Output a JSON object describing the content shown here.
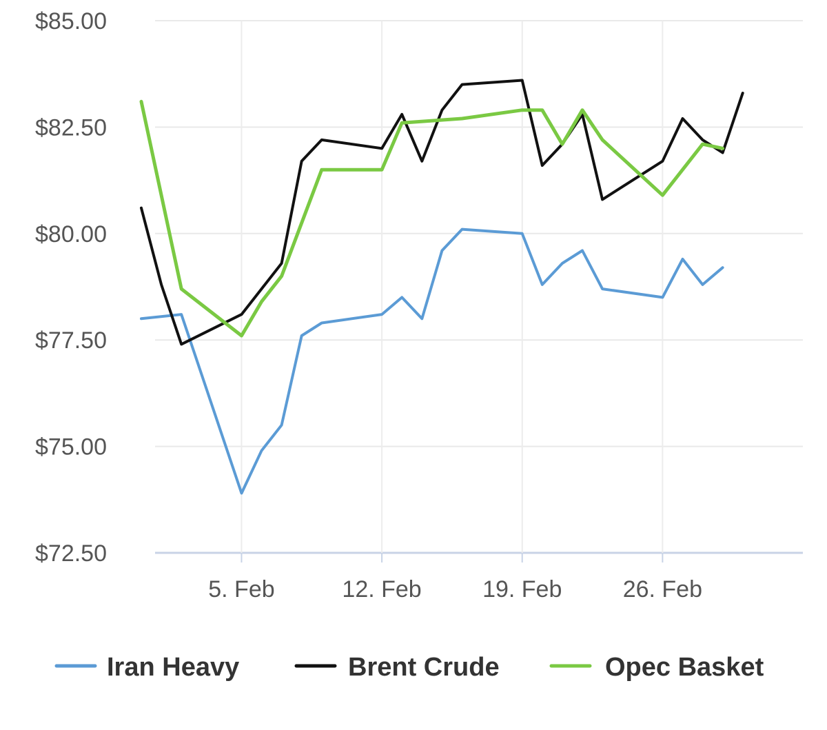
{
  "chart_data": {
    "type": "line",
    "title": "",
    "xlabel": "",
    "ylabel": "",
    "ylim": [
      72.5,
      85.0
    ],
    "xlim": [
      "2018-01-31",
      "2018-03-05"
    ],
    "y_ticks": [
      85.0,
      82.5,
      80.0,
      77.5,
      75.0,
      72.5
    ],
    "y_tick_labels": [
      "$85.00",
      "$82.50",
      "$80.00",
      "$77.50",
      "$75.00",
      "$72.50"
    ],
    "x_ticks": [
      "2018-02-05",
      "2018-02-12",
      "2018-02-19",
      "2018-02-26"
    ],
    "x_tick_labels": [
      "5. Feb",
      "12. Feb",
      "19. Feb",
      "26. Feb"
    ],
    "grid": true,
    "legend_position": "bottom",
    "series": [
      {
        "name": "Iran Heavy",
        "color": "#5b9bd5",
        "points": [
          [
            "2018-01-31",
            78.0
          ],
          [
            "2018-02-02",
            78.1
          ],
          [
            "2018-02-05",
            73.9
          ],
          [
            "2018-02-06",
            74.9
          ],
          [
            "2018-02-07",
            75.5
          ],
          [
            "2018-02-08",
            77.6
          ],
          [
            "2018-02-09",
            77.9
          ],
          [
            "2018-02-12",
            78.1
          ],
          [
            "2018-02-13",
            78.5
          ],
          [
            "2018-02-14",
            78.0
          ],
          [
            "2018-02-15",
            79.6
          ],
          [
            "2018-02-16",
            80.1
          ],
          [
            "2018-02-19",
            80.0
          ],
          [
            "2018-02-20",
            78.8
          ],
          [
            "2018-02-21",
            79.3
          ],
          [
            "2018-02-22",
            79.6
          ],
          [
            "2018-02-23",
            78.7
          ],
          [
            "2018-02-26",
            78.5
          ],
          [
            "2018-02-27",
            79.4
          ],
          [
            "2018-02-28",
            78.8
          ],
          [
            "2018-03-01",
            79.2
          ]
        ]
      },
      {
        "name": "Brent Crude",
        "color": "#111111",
        "points": [
          [
            "2018-01-31",
            80.6
          ],
          [
            "2018-02-01",
            78.8
          ],
          [
            "2018-02-02",
            77.4
          ],
          [
            "2018-02-05",
            78.1
          ],
          [
            "2018-02-06",
            78.7
          ],
          [
            "2018-02-07",
            79.3
          ],
          [
            "2018-02-08",
            81.7
          ],
          [
            "2018-02-09",
            82.2
          ],
          [
            "2018-02-12",
            82.0
          ],
          [
            "2018-02-13",
            82.8
          ],
          [
            "2018-02-14",
            81.7
          ],
          [
            "2018-02-15",
            82.9
          ],
          [
            "2018-02-16",
            83.5
          ],
          [
            "2018-02-19",
            83.6
          ],
          [
            "2018-02-20",
            81.6
          ],
          [
            "2018-02-21",
            82.1
          ],
          [
            "2018-02-22",
            82.8
          ],
          [
            "2018-02-23",
            80.8
          ],
          [
            "2018-02-26",
            81.7
          ],
          [
            "2018-02-27",
            82.7
          ],
          [
            "2018-02-28",
            82.2
          ],
          [
            "2018-03-01",
            81.9
          ],
          [
            "2018-03-02",
            83.3
          ]
        ]
      },
      {
        "name": "Opec Basket",
        "color": "#7ac943",
        "points": [
          [
            "2018-01-31",
            83.1
          ],
          [
            "2018-02-02",
            78.7
          ],
          [
            "2018-02-05",
            77.6
          ],
          [
            "2018-02-06",
            78.4
          ],
          [
            "2018-02-07",
            79.0
          ],
          [
            "2018-02-09",
            81.5
          ],
          [
            "2018-02-12",
            81.5
          ],
          [
            "2018-02-13",
            82.6
          ],
          [
            "2018-02-16",
            82.7
          ],
          [
            "2018-02-19",
            82.9
          ],
          [
            "2018-02-20",
            82.9
          ],
          [
            "2018-02-21",
            82.1
          ],
          [
            "2018-02-22",
            82.9
          ],
          [
            "2018-02-23",
            82.2
          ],
          [
            "2018-02-26",
            80.9
          ],
          [
            "2018-02-28",
            82.1
          ],
          [
            "2018-03-01",
            82.0
          ]
        ]
      }
    ]
  }
}
